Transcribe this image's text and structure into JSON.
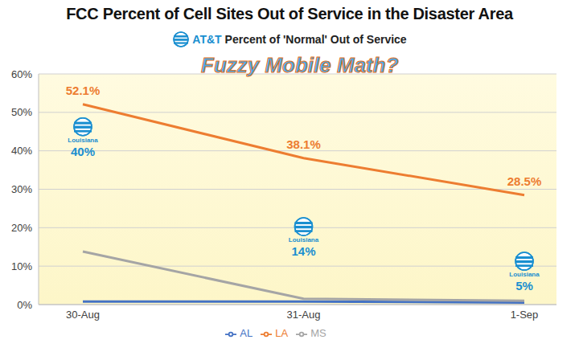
{
  "chart_data": {
    "type": "line",
    "title": "FCC Percent of Cell Sites Out of Service in the Disaster Area",
    "subtitle": "AT&T Percent of 'Normal' Out of Service",
    "annotation": "Fuzzy Mobile Math?",
    "categories": [
      "30-Aug",
      "31-Aug",
      "1-Sep"
    ],
    "series": [
      {
        "name": "AL",
        "color": "#4472c4",
        "marker": "none",
        "values": [
          0.8,
          0.8,
          0.5
        ]
      },
      {
        "name": "LA",
        "color": "#ed7d31",
        "marker": "none",
        "values": [
          52.1,
          38.1,
          28.5
        ],
        "data_labels": true,
        "value_labels": [
          "52.1%",
          "38.1%",
          "28.5%"
        ]
      },
      {
        "name": "MS",
        "color": "#a5a5a5",
        "marker": "none",
        "values": [
          13.8,
          1.5,
          1.0
        ]
      },
      {
        "name": "Louisiana",
        "type": "scatter",
        "marker": "logo",
        "color": "#1a8fd0",
        "values": [
          40,
          14,
          5
        ],
        "data_labels": true,
        "value_labels": [
          "40%",
          "14%",
          "5%"
        ]
      }
    ],
    "ylim": [
      0,
      60
    ],
    "yticks": [
      {
        "value": 0,
        "label": "0%"
      },
      {
        "value": 10,
        "label": "10%"
      },
      {
        "value": 20,
        "label": "20%"
      },
      {
        "value": 30,
        "label": "30%"
      },
      {
        "value": 40,
        "label": "40%"
      },
      {
        "value": 50,
        "label": "50%"
      },
      {
        "value": 60,
        "label": "60%"
      }
    ],
    "grid": true,
    "legend": "bottom"
  }
}
